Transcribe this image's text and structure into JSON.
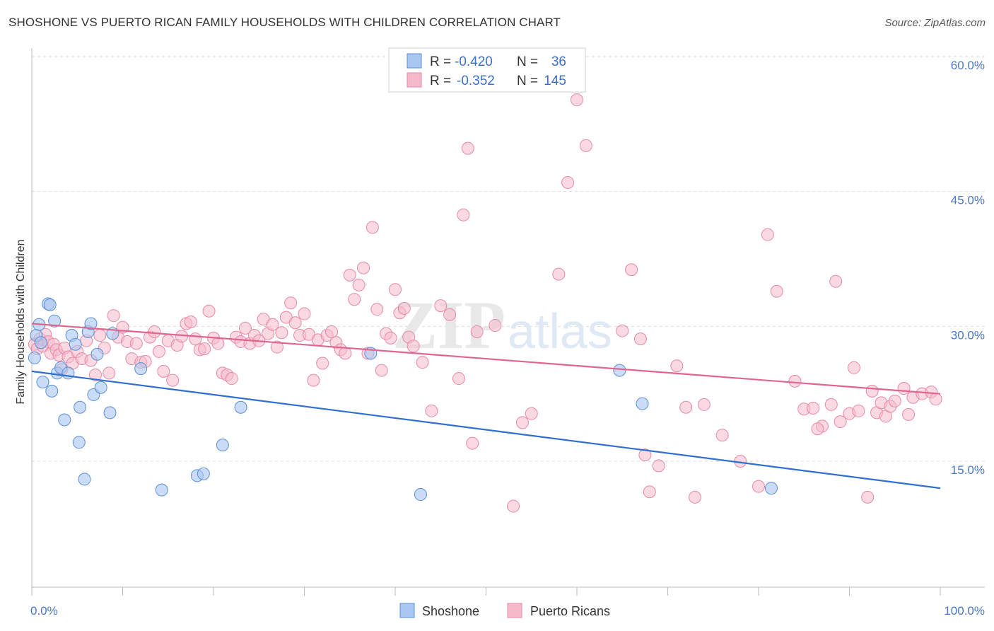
{
  "title": "SHOSHONE VS PUERTO RICAN FAMILY HOUSEHOLDS WITH CHILDREN CORRELATION CHART",
  "source": "Source: ZipAtlas.com",
  "watermark": "ZIPatlas",
  "colors": {
    "shoshone_fill": "#a9c7f0",
    "shoshone_stroke": "#5b8fd6",
    "shoshone_line": "#2f6fd0",
    "pr_fill": "#f6b9cb",
    "pr_stroke": "#e68aa6",
    "pr_line": "#e0668f",
    "grid": "#d9d9d9",
    "axis_text": "#4a78c8"
  },
  "legend": {
    "rows": [
      {
        "r_label": "R =",
        "r_value": "-0.420",
        "n_label": "N =",
        "n_value": "36"
      },
      {
        "r_label": "R =",
        "r_value": "-0.352",
        "n_label": "N =",
        "n_value": "145"
      }
    ]
  },
  "chart_data": {
    "type": "scatter",
    "title": "SHOSHONE VS PUERTO RICAN FAMILY HOUSEHOLDS WITH CHILDREN CORRELATION CHART",
    "xlabel": "",
    "ylabel": "Family Households with Children",
    "xlim": [
      0,
      100
    ],
    "ylim": [
      0,
      62
    ],
    "x_tick_labels": [
      "0.0%",
      "100.0%"
    ],
    "y_ticks": [
      15,
      30,
      45,
      60
    ],
    "y_tick_labels": [
      "15.0%",
      "30.0%",
      "45.0%",
      "60.0%"
    ],
    "legend_position": "bottom",
    "series": [
      {
        "name": "Shoshone",
        "r": -0.42,
        "n": 36,
        "trend": {
          "x": [
            0,
            100
          ],
          "y": [
            25.0,
            12.0
          ]
        },
        "points": [
          [
            0.3,
            26.5
          ],
          [
            0.5,
            29.0
          ],
          [
            0.8,
            30.2
          ],
          [
            1.2,
            23.8
          ],
          [
            1.8,
            32.5
          ],
          [
            2.0,
            32.4
          ],
          [
            2.2,
            22.8
          ],
          [
            2.5,
            30.6
          ],
          [
            2.8,
            24.8
          ],
          [
            3.2,
            25.4
          ],
          [
            3.6,
            19.6
          ],
          [
            4.0,
            24.8
          ],
          [
            4.4,
            29.0
          ],
          [
            4.8,
            28.0
          ],
          [
            5.2,
            17.1
          ],
          [
            5.3,
            21.0
          ],
          [
            5.8,
            13.0
          ],
          [
            6.2,
            29.4
          ],
          [
            6.5,
            30.3
          ],
          [
            6.8,
            22.4
          ],
          [
            7.2,
            26.9
          ],
          [
            7.6,
            23.2
          ],
          [
            8.6,
            20.4
          ],
          [
            8.9,
            29.2
          ],
          [
            12.0,
            25.3
          ],
          [
            14.3,
            11.8
          ],
          [
            18.2,
            13.4
          ],
          [
            18.9,
            13.6
          ],
          [
            21.0,
            16.8
          ],
          [
            23.0,
            21.0
          ],
          [
            37.3,
            27.0
          ],
          [
            42.8,
            11.3
          ],
          [
            64.7,
            25.1
          ],
          [
            67.2,
            21.4
          ],
          [
            81.4,
            12.0
          ],
          [
            1.0,
            28.2
          ]
        ]
      },
      {
        "name": "Puerto Ricans",
        "r": -0.352,
        "n": 145,
        "trend": {
          "x": [
            0,
            100
          ],
          "y": [
            30.3,
            22.5
          ]
        },
        "points": [
          [
            0.3,
            28.0
          ],
          [
            0.6,
            27.5
          ],
          [
            0.9,
            28.6
          ],
          [
            1.2,
            27.8
          ],
          [
            1.5,
            29.1
          ],
          [
            1.8,
            28.3
          ],
          [
            2.1,
            27.0
          ],
          [
            2.4,
            28.0
          ],
          [
            2.7,
            27.4
          ],
          [
            3.0,
            26.8
          ],
          [
            3.3,
            25.2
          ],
          [
            3.6,
            27.6
          ],
          [
            4.0,
            26.6
          ],
          [
            4.5,
            25.9
          ],
          [
            5.0,
            27.2
          ],
          [
            5.5,
            26.4
          ],
          [
            6.0,
            28.4
          ],
          [
            6.5,
            26.2
          ],
          [
            7.0,
            24.6
          ],
          [
            7.5,
            29.0
          ],
          [
            8.0,
            27.6
          ],
          [
            8.5,
            24.8
          ],
          [
            9.0,
            31.2
          ],
          [
            9.5,
            28.8
          ],
          [
            10.0,
            29.9
          ],
          [
            10.5,
            28.3
          ],
          [
            11.0,
            26.4
          ],
          [
            11.5,
            28.1
          ],
          [
            12.0,
            26.0
          ],
          [
            12.5,
            26.1
          ],
          [
            13.0,
            28.8
          ],
          [
            13.5,
            29.4
          ],
          [
            14.0,
            27.2
          ],
          [
            14.5,
            25.0
          ],
          [
            15.0,
            28.4
          ],
          [
            15.5,
            24.0
          ],
          [
            16.0,
            27.9
          ],
          [
            16.5,
            28.9
          ],
          [
            17.0,
            30.3
          ],
          [
            17.5,
            30.5
          ],
          [
            18.0,
            28.6
          ],
          [
            18.5,
            27.4
          ],
          [
            19.0,
            27.5
          ],
          [
            19.5,
            31.7
          ],
          [
            20.0,
            28.7
          ],
          [
            20.5,
            28.1
          ],
          [
            21.0,
            24.8
          ],
          [
            21.5,
            24.6
          ],
          [
            22.0,
            24.2
          ],
          [
            22.5,
            28.8
          ],
          [
            23.0,
            28.3
          ],
          [
            23.5,
            29.8
          ],
          [
            24.0,
            28.1
          ],
          [
            24.5,
            29.0
          ],
          [
            25.0,
            28.4
          ],
          [
            25.5,
            30.8
          ],
          [
            26.0,
            29.2
          ],
          [
            26.5,
            30.2
          ],
          [
            27.0,
            27.7
          ],
          [
            27.5,
            29.3
          ],
          [
            28.0,
            31.0
          ],
          [
            28.5,
            32.6
          ],
          [
            29.0,
            30.4
          ],
          [
            29.5,
            29.0
          ],
          [
            30.0,
            31.4
          ],
          [
            30.5,
            29.1
          ],
          [
            31.0,
            24.0
          ],
          [
            31.5,
            28.5
          ],
          [
            32.0,
            25.9
          ],
          [
            32.5,
            29.0
          ],
          [
            33.0,
            29.4
          ],
          [
            33.5,
            28.2
          ],
          [
            34.0,
            27.4
          ],
          [
            34.5,
            27.0
          ],
          [
            35.0,
            35.7
          ],
          [
            35.5,
            33.0
          ],
          [
            36.0,
            34.6
          ],
          [
            36.5,
            36.5
          ],
          [
            37.0,
            27.0
          ],
          [
            37.5,
            41.0
          ],
          [
            38.0,
            31.9
          ],
          [
            38.5,
            25.1
          ],
          [
            39.0,
            29.2
          ],
          [
            39.5,
            28.7
          ],
          [
            40.0,
            34.1
          ],
          [
            40.5,
            31.5
          ],
          [
            41.0,
            32.0
          ],
          [
            41.5,
            28.8
          ],
          [
            42.0,
            27.8
          ],
          [
            43.0,
            26.0
          ],
          [
            44.0,
            20.6
          ],
          [
            45.0,
            32.3
          ],
          [
            46.0,
            31.3
          ],
          [
            47.0,
            24.2
          ],
          [
            47.5,
            42.4
          ],
          [
            48.0,
            49.8
          ],
          [
            48.5,
            17.0
          ],
          [
            49.0,
            29.4
          ],
          [
            51.0,
            30.1
          ],
          [
            53.0,
            10.0
          ],
          [
            54.0,
            19.3
          ],
          [
            55.0,
            20.3
          ],
          [
            58.0,
            35.8
          ],
          [
            59.0,
            46.0
          ],
          [
            60.0,
            55.2
          ],
          [
            61.0,
            50.1
          ],
          [
            65.0,
            29.5
          ],
          [
            66.0,
            36.3
          ],
          [
            67.0,
            28.6
          ],
          [
            67.5,
            15.7
          ],
          [
            68.0,
            11.6
          ],
          [
            69.0,
            14.5
          ],
          [
            71.0,
            25.6
          ],
          [
            72.0,
            21.0
          ],
          [
            73.0,
            11.0
          ],
          [
            74.0,
            21.3
          ],
          [
            76.0,
            17.9
          ],
          [
            78.0,
            15.0
          ],
          [
            80.0,
            12.2
          ],
          [
            81.0,
            40.2
          ],
          [
            82.0,
            33.9
          ],
          [
            84.0,
            23.9
          ],
          [
            85.0,
            20.8
          ],
          [
            86.0,
            20.9
          ],
          [
            87.0,
            18.9
          ],
          [
            88.0,
            21.3
          ],
          [
            88.5,
            35.0
          ],
          [
            89.0,
            19.4
          ],
          [
            90.0,
            20.3
          ],
          [
            90.5,
            25.4
          ],
          [
            91.0,
            20.6
          ],
          [
            92.0,
            11.0
          ],
          [
            92.5,
            22.8
          ],
          [
            93.0,
            20.4
          ],
          [
            93.5,
            21.5
          ],
          [
            94.0,
            20.0
          ],
          [
            94.5,
            21.1
          ],
          [
            95.0,
            21.7
          ],
          [
            96.0,
            23.1
          ],
          [
            96.5,
            20.2
          ],
          [
            97.0,
            22.1
          ],
          [
            98.0,
            22.5
          ],
          [
            99.0,
            22.7
          ],
          [
            99.5,
            21.9
          ],
          [
            86.5,
            18.6
          ]
        ]
      }
    ]
  },
  "bottom_legend": [
    "Shoshone",
    "Puerto Ricans"
  ]
}
